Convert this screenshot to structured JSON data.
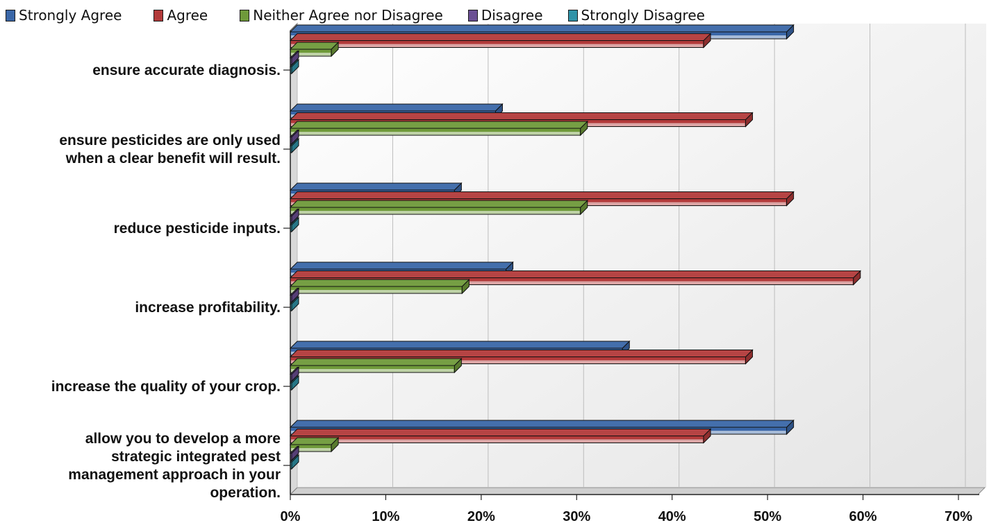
{
  "chart_data": {
    "type": "bar",
    "orientation": "horizontal",
    "style": "3d",
    "categories": [
      [
        "ensure accurate diagnosis."
      ],
      [
        "ensure pesticides are only used",
        "when a clear benefit will result."
      ],
      [
        "reduce pesticide inputs."
      ],
      [
        "increase profitability."
      ],
      [
        "increase the quality of your crop."
      ],
      [
        "allow you to develop a more",
        "strategic integrated pest",
        "management approach in your",
        "operation."
      ]
    ],
    "series": [
      {
        "name": "Strongly Agree",
        "color": "#3a67a8",
        "values": [
          52,
          21.5,
          17.2,
          22.6,
          34.8,
          52
        ]
      },
      {
        "name": "Agree",
        "color": "#b23a3a",
        "values": [
          43.3,
          47.7,
          52,
          59,
          47.7,
          43.3
        ]
      },
      {
        "name": "Neither Agree nor Disagree",
        "color": "#6f9a3a",
        "values": [
          4.3,
          30.4,
          30.4,
          18,
          17.2,
          4.3
        ]
      },
      {
        "name": "Disagree",
        "color": "#6b4f94",
        "values": [
          0,
          0,
          0,
          0,
          0,
          0
        ]
      },
      {
        "name": "Strongly Disagree",
        "color": "#2f93a8",
        "values": [
          0,
          0,
          0,
          0,
          0,
          0
        ]
      }
    ],
    "xlim": [
      0,
      70
    ],
    "xticks": [
      "0%",
      "10%",
      "20%",
      "30%",
      "40%",
      "50%",
      "60%",
      "70%"
    ],
    "grid": true,
    "legend_position": "top-left"
  }
}
